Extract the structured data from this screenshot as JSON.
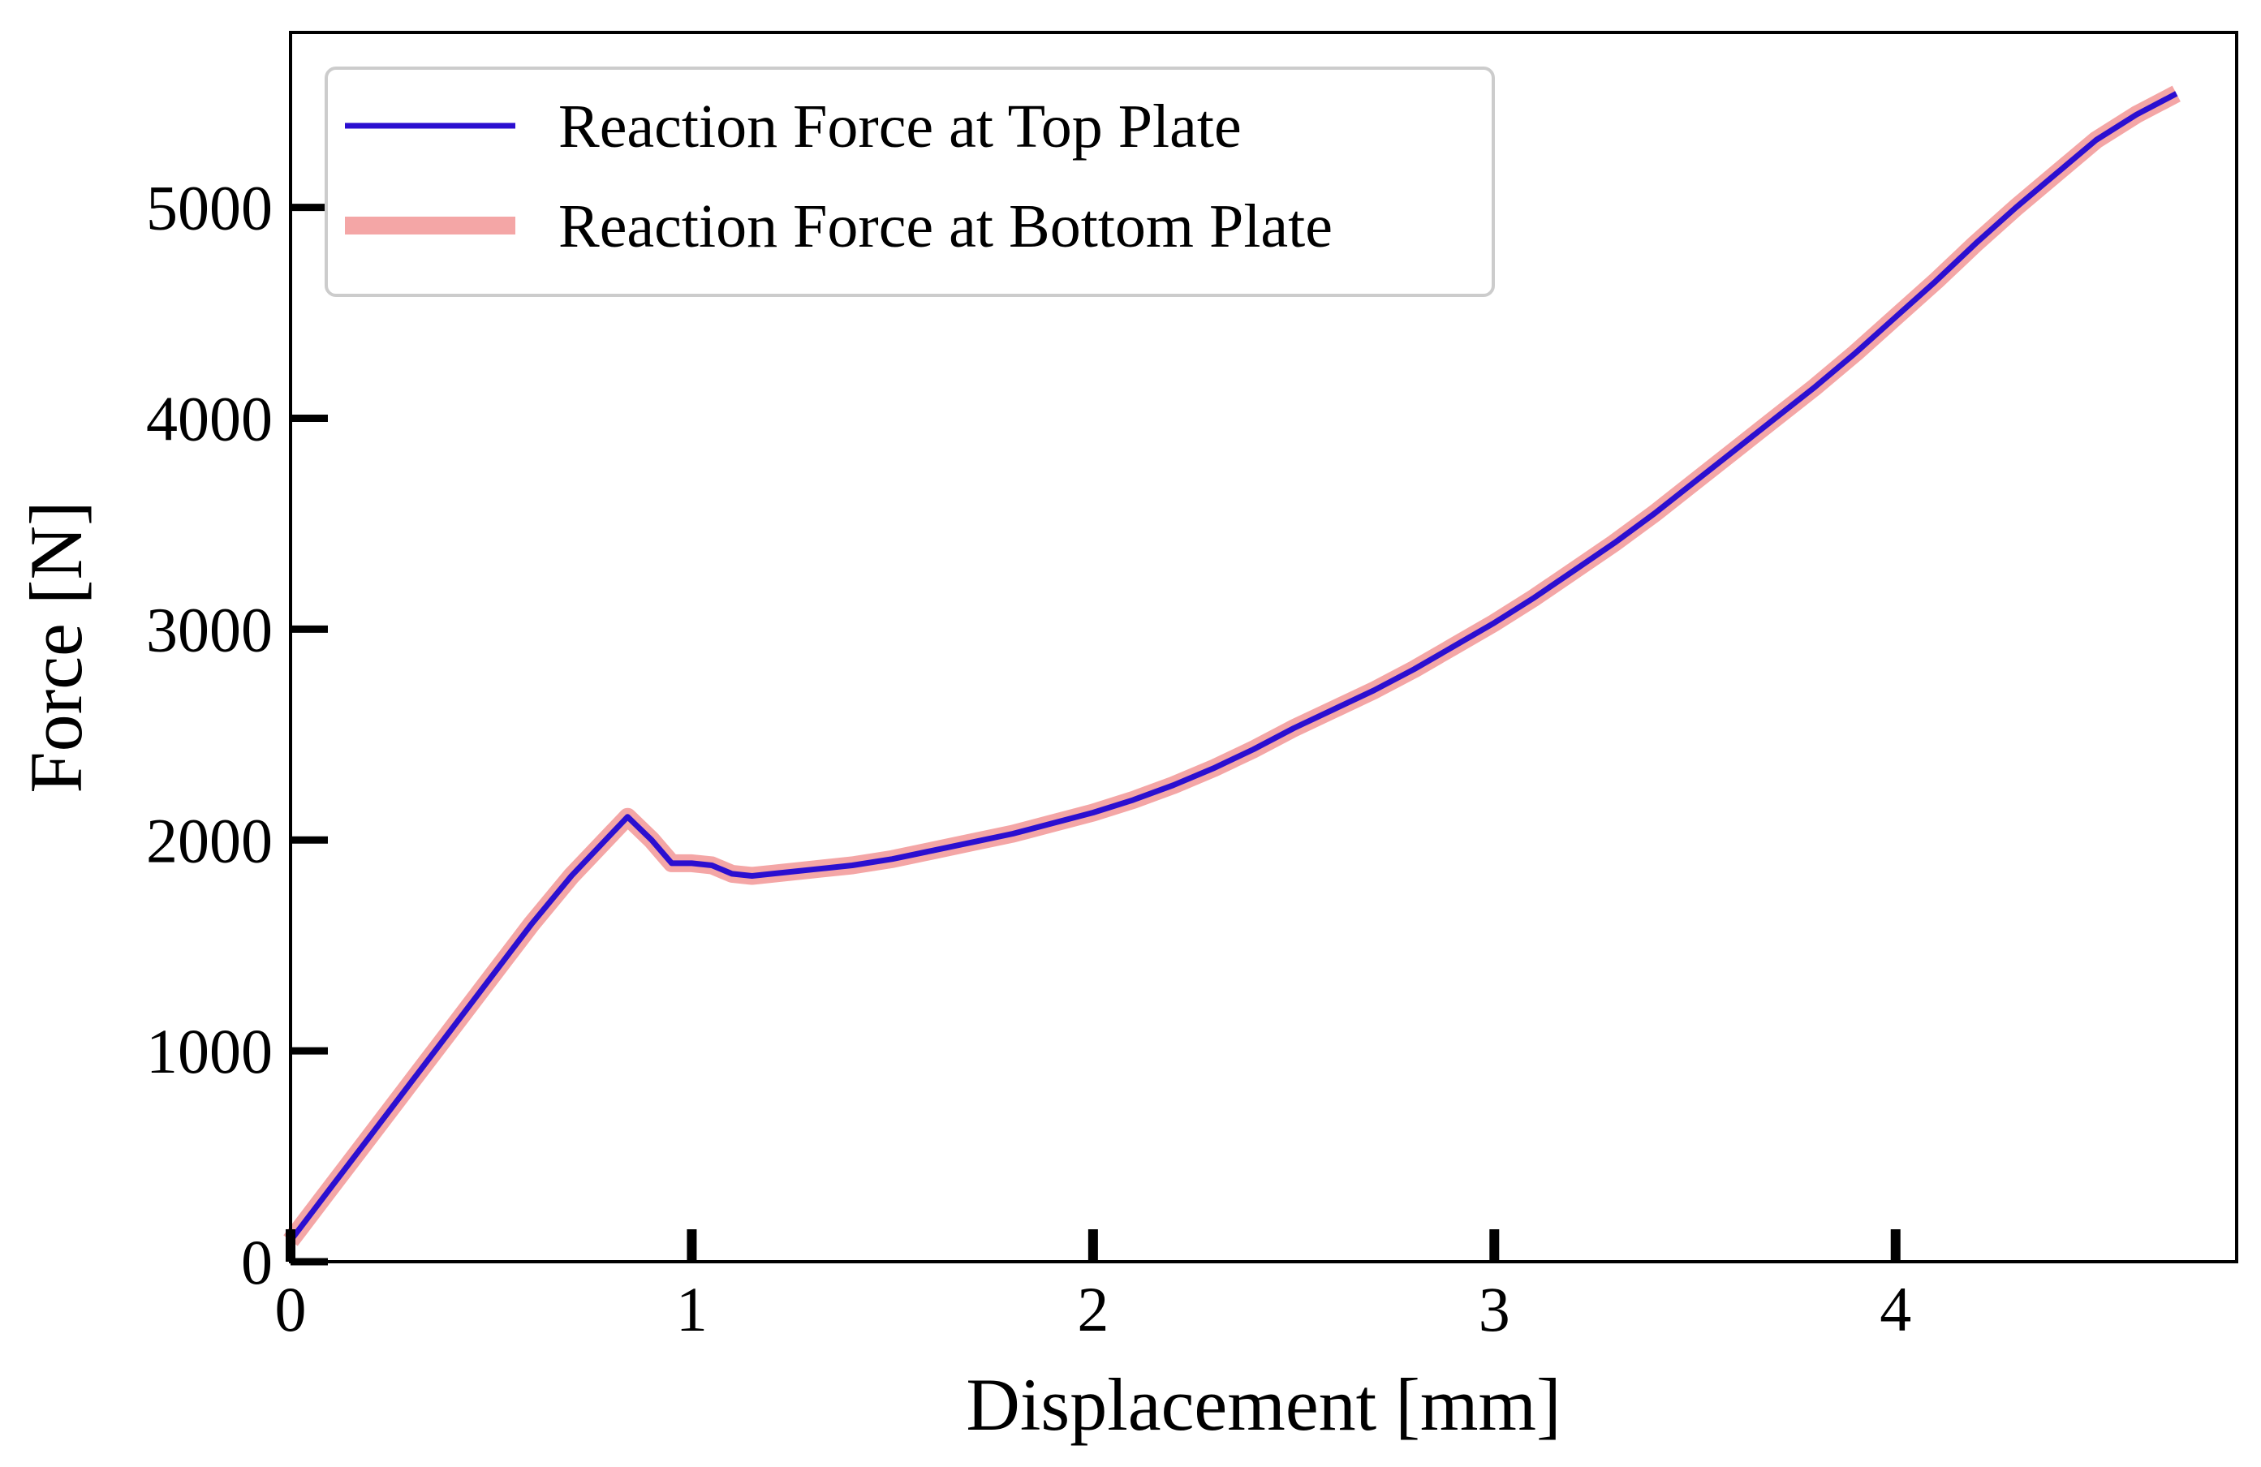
{
  "chart_data": {
    "type": "line",
    "title": "",
    "xlabel": "Displacement [mm]",
    "ylabel": "Force [N]",
    "xlim": [
      0,
      4.85
    ],
    "ylim": [
      0,
      5830
    ],
    "xticks": [
      0,
      1,
      2,
      3,
      4
    ],
    "xtick_labels": [
      "0",
      "1",
      "2",
      "3",
      "4"
    ],
    "yticks": [
      0,
      1000,
      2000,
      3000,
      4000,
      5000
    ],
    "ytick_labels": [
      "0",
      "1000",
      "2000",
      "3000",
      "4000",
      "5000"
    ],
    "grid": false,
    "legend_position": "top-left",
    "x": [
      0,
      0.1,
      0.2,
      0.3,
      0.4,
      0.5,
      0.6,
      0.7,
      0.8,
      0.84,
      0.9,
      0.95,
      1.0,
      1.05,
      1.1,
      1.15,
      1.2,
      1.3,
      1.4,
      1.5,
      1.6,
      1.7,
      1.8,
      1.9,
      2.0,
      2.1,
      2.2,
      2.3,
      2.4,
      2.5,
      2.6,
      2.7,
      2.8,
      2.9,
      3.0,
      3.1,
      3.2,
      3.3,
      3.4,
      3.5,
      3.6,
      3.7,
      3.8,
      3.9,
      4.0,
      4.1,
      4.2,
      4.3,
      4.4,
      4.5,
      4.6,
      4.7
    ],
    "series": [
      {
        "name": "Reaction Force at Bottom Plate",
        "color": "#F4A6A6",
        "values": [
          100,
          350,
          600,
          850,
          1100,
          1350,
          1600,
          1830,
          2030,
          2110,
          2000,
          1890,
          1890,
          1880,
          1840,
          1830,
          1840,
          1860,
          1880,
          1910,
          1950,
          1990,
          2030,
          2080,
          2130,
          2190,
          2260,
          2340,
          2430,
          2530,
          2620,
          2710,
          2810,
          2920,
          3030,
          3150,
          3280,
          3410,
          3550,
          3700,
          3850,
          4000,
          4150,
          4310,
          4480,
          4650,
          4830,
          5000,
          5160,
          5320,
          5440,
          5540
        ]
      },
      {
        "name": "Reaction Force at Top Plate",
        "color": "#2B0FD0",
        "values": [
          100,
          350,
          600,
          850,
          1100,
          1350,
          1600,
          1830,
          2030,
          2110,
          2000,
          1890,
          1890,
          1880,
          1840,
          1830,
          1840,
          1860,
          1880,
          1910,
          1950,
          1990,
          2030,
          2080,
          2130,
          2190,
          2260,
          2340,
          2430,
          2530,
          2620,
          2710,
          2810,
          2920,
          3030,
          3150,
          3280,
          3410,
          3550,
          3700,
          3850,
          4000,
          4150,
          4310,
          4480,
          4650,
          4830,
          5000,
          5160,
          5320,
          5440,
          5540
        ]
      }
    ],
    "legend": [
      {
        "label": "Reaction Force at Top Plate",
        "color": "#2B0FD0",
        "style": "thin"
      },
      {
        "label": "Reaction Force at Bottom Plate",
        "color": "#F4A6A6",
        "style": "thick"
      }
    ]
  }
}
